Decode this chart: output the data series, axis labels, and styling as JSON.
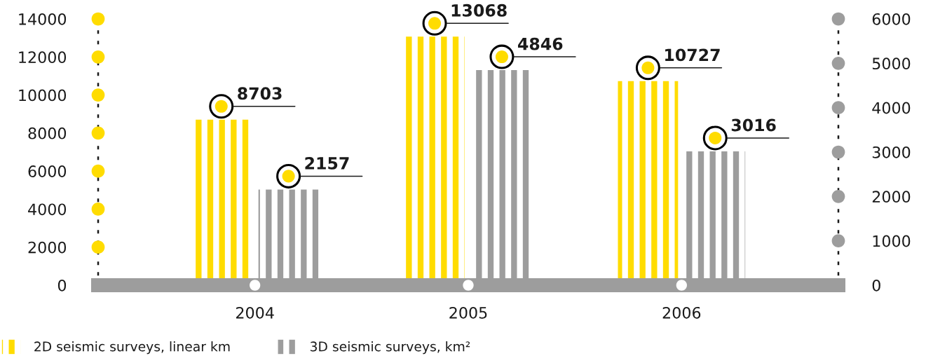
{
  "chart_data": {
    "type": "bar",
    "categories": [
      "2004",
      "2005",
      "2006"
    ],
    "series": [
      {
        "name": "2D seismic surveys, linear km",
        "color": "#ffdc00",
        "values": [
          8703,
          13068,
          10727
        ]
      },
      {
        "name": "3D seismic surveys, km²",
        "color": "#9d9d9d",
        "values": [
          2157,
          4846,
          3016
        ],
        "axis": "y2"
      }
    ],
    "ylim": [
      0,
      14000
    ],
    "yticks": [
      0,
      2000,
      4000,
      6000,
      8000,
      10000,
      12000,
      14000
    ],
    "y2lim": [
      0,
      6000
    ],
    "y2ticks": [
      0,
      1000,
      2000,
      3000,
      4000,
      5000,
      6000
    ],
    "data_labels": true,
    "legend": "bottom left"
  }
}
